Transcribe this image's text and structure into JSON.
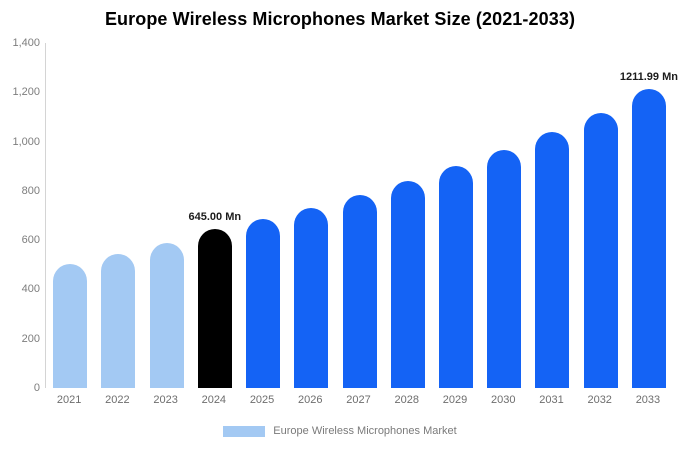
{
  "chart_data": {
    "type": "bar",
    "title": "Europe Wireless Microphones Market Size (2021-2033)",
    "categories": [
      "2021",
      "2022",
      "2023",
      "2024",
      "2025",
      "2026",
      "2027",
      "2028",
      "2029",
      "2030",
      "2031",
      "2032",
      "2033"
    ],
    "values": [
      505,
      545,
      590,
      645,
      685,
      730,
      785,
      840,
      900,
      965,
      1040,
      1115,
      1211.99
    ],
    "bar_colors": [
      "#a3c9f3",
      "#a3c9f3",
      "#a3c9f3",
      "#000000",
      "#1463f5",
      "#1463f5",
      "#1463f5",
      "#1463f5",
      "#1463f5",
      "#1463f5",
      "#1463f5",
      "#1463f5",
      "#1463f5"
    ],
    "annotations": [
      {
        "index": 3,
        "text": "645.00 Mn"
      },
      {
        "index": 12,
        "text": "1211.99 Mn"
      }
    ],
    "xlabel": "",
    "ylabel": "",
    "ylim": [
      0,
      1400
    ],
    "yticks": [
      {
        "value": 0,
        "label": "0"
      },
      {
        "value": 200,
        "label": "200"
      },
      {
        "value": 400,
        "label": "400"
      },
      {
        "value": 600,
        "label": "600"
      },
      {
        "value": 800,
        "label": "800"
      },
      {
        "value": 1000,
        "label": "1,000"
      },
      {
        "value": 1200,
        "label": "1,200"
      },
      {
        "value": 1400,
        "label": "1,400"
      }
    ],
    "grid": false,
    "legend_position": "bottom",
    "legend": {
      "label": "Europe Wireless Microphones Market",
      "swatch_color": "#a3c9f3"
    }
  }
}
